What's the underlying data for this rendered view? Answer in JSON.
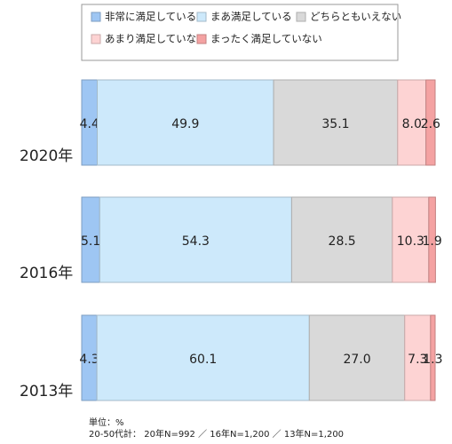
{
  "chart_data": {
    "type": "stacked-bar-horizontal",
    "categories": [
      "2020年",
      "2016年",
      "2013年"
    ],
    "xlim": [
      0,
      100
    ],
    "series": [
      {
        "name": "非常に満足している",
        "color": "#9ec6f3",
        "values": [
          4.4,
          5.1,
          4.3
        ]
      },
      {
        "name": "まあ満足している",
        "color": "#cde9fb",
        "values": [
          49.9,
          54.3,
          60.1
        ]
      },
      {
        "name": "どちらともいえない",
        "color": "#d9d9d9",
        "values": [
          35.1,
          28.5,
          27.0
        ],
        "value_labels": [
          "35.1",
          "28.5",
          "27.0"
        ]
      },
      {
        "name": "あまり満足していない",
        "color": "#fdd3d3",
        "values": [
          8.0,
          10.3,
          7.3
        ],
        "value_labels": [
          "8.0",
          "10.3",
          "7.3"
        ]
      },
      {
        "name": "まったく満足していない",
        "color": "#f4a2a2",
        "values": [
          2.6,
          1.9,
          1.3
        ]
      }
    ],
    "notes": [
      "単位：%",
      "20-50代計： 20年N=992 ／ 16年N=1,200 ／ 13年N=1,200"
    ]
  }
}
